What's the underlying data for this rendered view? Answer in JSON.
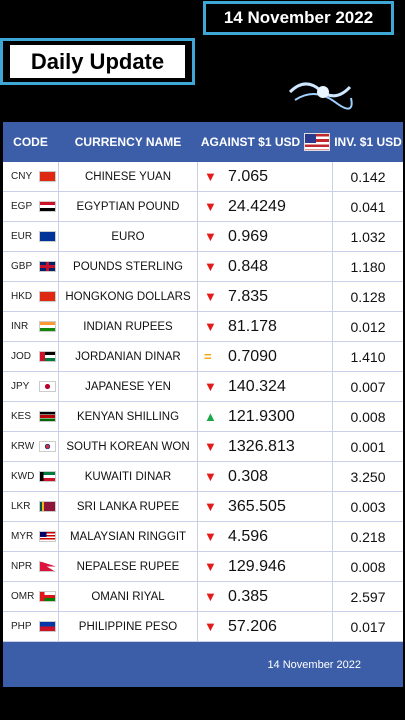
{
  "top_date": "14 November 2022",
  "banner": "Daily Update",
  "header": {
    "code": "CODE",
    "name": "CURRENCY NAME",
    "against": "AGAINST $1 USD",
    "inverse": "INV. $1 USD"
  },
  "rows": [
    {
      "code": "CNY",
      "name": "CHINESE YUAN",
      "trend": "down",
      "against": "7.065",
      "inverse": "0.142",
      "flag": "cn-flag-icon"
    },
    {
      "code": "EGP",
      "name": "EGYPTIAN POUND",
      "trend": "down",
      "against": "24.4249",
      "inverse": "0.041",
      "flag": "eg-flag-icon"
    },
    {
      "code": "EUR",
      "name": "EURO",
      "trend": "down",
      "against": "0.969",
      "inverse": "1.032",
      "flag": "eu-flag-icon"
    },
    {
      "code": "GBP",
      "name": "POUNDS STERLING",
      "trend": "down",
      "against": "0.848",
      "inverse": "1.180",
      "flag": "gb-flag-icon"
    },
    {
      "code": "HKD",
      "name": "HONGKONG DOLLARS",
      "trend": "down",
      "against": "7.835",
      "inverse": "0.128",
      "flag": "hk-flag-icon"
    },
    {
      "code": "INR",
      "name": "INDIAN RUPEES",
      "trend": "down",
      "against": "81.178",
      "inverse": "0.012",
      "flag": "in-flag-icon"
    },
    {
      "code": "JOD",
      "name": "JORDANIAN DINAR",
      "trend": "equal",
      "against": "0.7090",
      "inverse": "1.410",
      "flag": "jo-flag-icon"
    },
    {
      "code": "JPY",
      "name": "JAPANESE YEN",
      "trend": "down",
      "against": "140.324",
      "inverse": "0.007",
      "flag": "jp-flag-icon"
    },
    {
      "code": "KES",
      "name": "KENYAN SHILLING",
      "trend": "up",
      "against": "121.9300",
      "inverse": "0.008",
      "flag": "ke-flag-icon"
    },
    {
      "code": "KRW",
      "name": "SOUTH KOREAN WON",
      "trend": "down",
      "against": "1326.813",
      "inverse": "0.001",
      "flag": "kr-flag-icon"
    },
    {
      "code": "KWD",
      "name": "KUWAITI DINAR",
      "trend": "down",
      "against": "0.308",
      "inverse": "3.250",
      "flag": "kw-flag-icon"
    },
    {
      "code": "LKR",
      "name": "SRI LANKA RUPEE",
      "trend": "down",
      "against": "365.505",
      "inverse": "0.003",
      "flag": "lk-flag-icon"
    },
    {
      "code": "MYR",
      "name": "MALAYSIAN RINGGIT",
      "trend": "down",
      "against": "4.596",
      "inverse": "0.218",
      "flag": "my-flag-icon"
    },
    {
      "code": "NPR",
      "name": "NEPALESE RUPEE",
      "trend": "down",
      "against": "129.946",
      "inverse": "0.008",
      "flag": "np-flag-icon"
    },
    {
      "code": "OMR",
      "name": "OMANI RIYAL",
      "trend": "down",
      "against": "0.385",
      "inverse": "2.597",
      "flag": "om-flag-icon"
    },
    {
      "code": "PHP",
      "name": "PHILIPPINE PESO",
      "trend": "down",
      "against": "57.206",
      "inverse": "0.017",
      "flag": "ph-flag-icon"
    }
  ],
  "footer_date": "14 November 2022",
  "colors": {
    "header_bg": "#3c5ea8",
    "border_accent": "#3fa7d6",
    "down": "#e21b1b",
    "up": "#1aa84a",
    "equal": "#f0a500"
  }
}
